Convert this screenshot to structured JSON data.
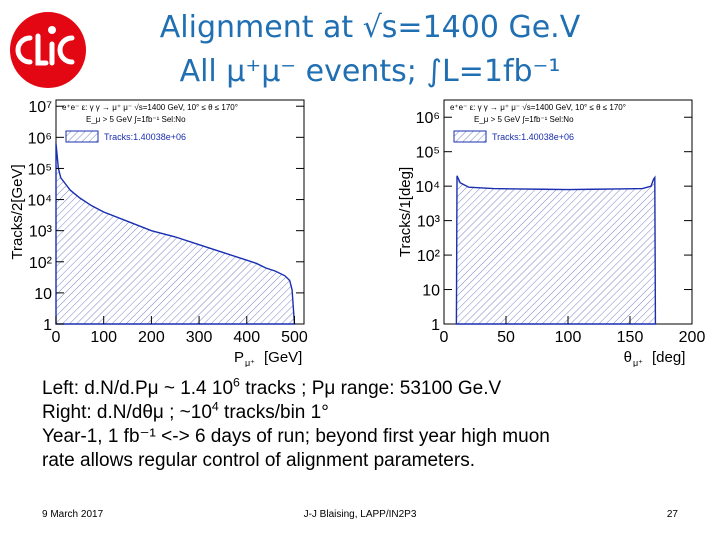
{
  "slide": {
    "title_line1": "Alignment at √s=1400 Ge.V",
    "title_line2": "All μ⁺μ⁻ events; ∫L=1fb⁻¹",
    "logo_text": "CLIC",
    "caption": {
      "line1_prefix": "Left:   d.N/d.Pμ ~ 1.4 10",
      "line1_sup": "6",
      "line1_suffix": " tracks ; Pμ range: 53100 Ge.V",
      "line2_prefix": "Right: d.N/dθμ ;  ~10",
      "line2_sup": "4",
      "line2_suffix": " tracks/bin 1°",
      "line3": "Year-1, 1 fb⁻¹ <-> 6 days of run; beyond first year high muon",
      "line4": "rate allows regular control of alignment parameters."
    },
    "footer": {
      "date": "9 March 2017",
      "author": "J-J Blaising, LAPP/IN2P3",
      "page": "27"
    },
    "colors": {
      "title": "#1f6fb2",
      "hist_line": "#1a2fb0",
      "hatch": "#7a84c8",
      "logo_red": "#e30613"
    }
  },
  "chart_data": [
    {
      "type": "area",
      "ylabel": "Tracks/2[GeV]",
      "xlabel": "P",
      "xlabel_sub": "μ⁺",
      "xlabel_unit": "[GeV]",
      "log_y": true,
      "xlim": [
        0,
        520
      ],
      "ylim_log10": [
        0,
        7.2
      ],
      "x_ticks": [
        0,
        100,
        200,
        300,
        400,
        500
      ],
      "y_ticks": [
        {
          "v": 0,
          "label": "1"
        },
        {
          "v": 1,
          "label": "10"
        },
        {
          "v": 2,
          "label": "10²"
        },
        {
          "v": 3,
          "label": "10³"
        },
        {
          "v": 4,
          "label": "10⁴"
        },
        {
          "v": 5,
          "label": "10⁵"
        },
        {
          "v": 6,
          "label": "10⁶"
        },
        {
          "v": 7,
          "label": "10⁷"
        }
      ],
      "header_line1": "e⁺e⁻ ε: γ γ → μ⁺ μ⁻ √s=1400 GeV, 10° ≤ θ ≤ 170°",
      "header_line2": "E_μ > 5 GeV  ∫=1fb⁻¹ Sel:No",
      "legend_label": "Tracks:1.40038e+06",
      "series": [
        {
          "x": [
            0,
            5,
            10,
            20,
            30,
            50,
            75,
            100,
            150,
            200,
            250,
            300,
            350,
            400,
            420,
            440,
            460,
            480,
            490,
            495,
            500
          ],
          "log10y": [
            5.8,
            5.0,
            4.7,
            4.5,
            4.3,
            4.05,
            3.8,
            3.6,
            3.3,
            3.0,
            2.8,
            2.55,
            2.3,
            2.05,
            1.95,
            1.8,
            1.7,
            1.55,
            1.4,
            1.1,
            0.0
          ]
        }
      ]
    },
    {
      "type": "area",
      "ylabel": "Tracks/1[deg]",
      "xlabel": "θ",
      "xlabel_sub": "μ⁺",
      "xlabel_unit": "[deg]",
      "log_y": true,
      "xlim": [
        0,
        200
      ],
      "ylim_log10": [
        0,
        6.5
      ],
      "x_ticks": [
        0,
        50,
        100,
        150,
        200
      ],
      "y_ticks": [
        {
          "v": 0,
          "label": "1"
        },
        {
          "v": 1,
          "label": "10"
        },
        {
          "v": 2,
          "label": "10²"
        },
        {
          "v": 3,
          "label": "10³"
        },
        {
          "v": 4,
          "label": "10⁴"
        },
        {
          "v": 5,
          "label": "10⁵"
        },
        {
          "v": 6,
          "label": "10⁶"
        }
      ],
      "header_line1": "e⁺e⁻ ε: γ γ → μ⁺ μ⁻ √s=1400 GeV, 10° ≤ θ ≤ 170°",
      "header_line2": "E_μ > 5 GeV  ∫=1fb⁻¹ Sel:No",
      "legend_label": "Tracks:1.40038e+06",
      "series": [
        {
          "x": [
            10,
            10.5,
            13,
            20,
            40,
            60,
            80,
            100,
            120,
            140,
            160,
            167,
            169,
            170,
            170.5
          ],
          "log10y": [
            0,
            4.3,
            4.1,
            3.97,
            3.93,
            3.92,
            3.91,
            3.9,
            3.91,
            3.92,
            3.93,
            4.0,
            4.2,
            4.25,
            0
          ]
        }
      ]
    }
  ]
}
